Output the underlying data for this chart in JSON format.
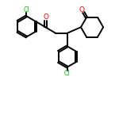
{
  "background": "#ffffff",
  "line_color": "#000000",
  "oxygen_color": "#ff0000",
  "chlorine_color": "#00bb00",
  "line_width": 1.4,
  "figsize": [
    1.5,
    1.5
  ],
  "dpi": 100,
  "xlim": [
    0,
    10
  ],
  "ylim": [
    0,
    10
  ]
}
